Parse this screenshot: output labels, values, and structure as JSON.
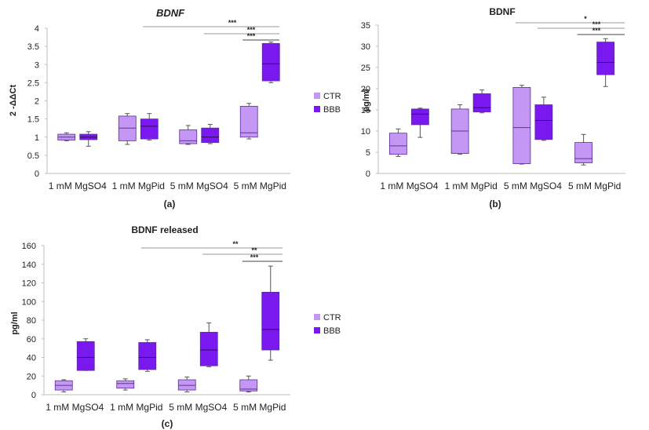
{
  "colors": {
    "ctr": "#c497f4",
    "bbb": "#7a18f0",
    "outline": "#5b2b9a",
    "axis": "#bdbdbd",
    "sig": "#9a9a9a"
  },
  "chart_data": [
    {
      "id": "a",
      "type": "boxplot",
      "title": "BDNF",
      "title_italic": true,
      "ylabel": "2 -ΔΔCt",
      "panel_label": "(a)",
      "categories": [
        "1 mM MgSO4",
        "1 mM MgPid",
        "5 mM MgSO4",
        "5 mM MgPid"
      ],
      "ylim": [
        0,
        4
      ],
      "yticks": [
        "0",
        "0.5",
        "1",
        "1.5",
        "2",
        "2.5",
        "3",
        "3.5",
        "4"
      ],
      "legend": [
        "CTR",
        "BBB"
      ],
      "series": [
        {
          "name": "CTR",
          "boxes": [
            {
              "min": 0.9,
              "q1": 0.92,
              "median": 1.0,
              "q3": 1.08,
              "max": 1.12
            },
            {
              "min": 0.8,
              "q1": 0.9,
              "median": 1.25,
              "q3": 1.58,
              "max": 1.65
            },
            {
              "min": 0.8,
              "q1": 0.82,
              "median": 0.9,
              "q3": 1.2,
              "max": 1.32
            },
            {
              "min": 0.95,
              "q1": 1.0,
              "median": 1.12,
              "q3": 1.85,
              "max": 1.93
            }
          ]
        },
        {
          "name": "BBB",
          "boxes": [
            {
              "min": 0.75,
              "q1": 0.93,
              "median": 1.0,
              "q3": 1.08,
              "max": 1.15
            },
            {
              "min": 0.92,
              "q1": 0.95,
              "median": 1.3,
              "q3": 1.5,
              "max": 1.65
            },
            {
              "min": 0.82,
              "q1": 0.85,
              "median": 1.0,
              "q3": 1.25,
              "max": 1.35
            },
            {
              "min": 2.5,
              "q1": 2.55,
              "median": 3.02,
              "q3": 3.58,
              "max": 3.62
            }
          ]
        }
      ],
      "significance": [
        {
          "label": "***",
          "from": [
            1,
            1
          ],
          "to": [
            3,
            1
          ]
        },
        {
          "label": "***",
          "from": [
            2,
            1
          ],
          "to": [
            3,
            1
          ]
        },
        {
          "label": "***",
          "from": [
            3,
            0
          ],
          "to": [
            3,
            1
          ]
        }
      ]
    },
    {
      "id": "b",
      "type": "boxplot",
      "title": "BDNF",
      "title_italic": false,
      "ylabel": "pg/ml",
      "panel_label": "(b)",
      "categories": [
        "1 mM MgSO4",
        "1 mM MgPid",
        "5 mM MgSO4",
        "5 mM MgPid"
      ],
      "ylim": [
        0,
        35
      ],
      "yticks": [
        "0",
        "5",
        "10",
        "15",
        "20",
        "25",
        "30",
        "35"
      ],
      "legend": [],
      "series": [
        {
          "name": "CTR",
          "boxes": [
            {
              "min": 4.0,
              "q1": 4.5,
              "median": 6.5,
              "q3": 9.5,
              "max": 10.5
            },
            {
              "min": 4.5,
              "q1": 4.7,
              "median": 10.0,
              "q3": 15.2,
              "max": 16.2
            },
            {
              "min": 2.2,
              "q1": 2.3,
              "median": 10.8,
              "q3": 20.3,
              "max": 20.8
            },
            {
              "min": 2.0,
              "q1": 2.5,
              "median": 3.5,
              "q3": 7.3,
              "max": 9.2
            }
          ]
        },
        {
          "name": "BBB",
          "boxes": [
            {
              "min": 8.5,
              "q1": 11.5,
              "median": 14.0,
              "q3": 15.2,
              "max": 15.4
            },
            {
              "min": 14.3,
              "q1": 14.5,
              "median": 15.5,
              "q3": 18.8,
              "max": 19.7
            },
            {
              "min": 7.8,
              "q1": 8.0,
              "median": 12.5,
              "q3": 16.2,
              "max": 18.0
            },
            {
              "min": 20.5,
              "q1": 23.3,
              "median": 26.2,
              "q3": 31.0,
              "max": 31.8
            }
          ]
        }
      ],
      "significance": [
        {
          "label": "*",
          "from": [
            2,
            0
          ],
          "to": [
            3,
            1
          ]
        },
        {
          "label": "***",
          "from": [
            2,
            1
          ],
          "to": [
            3,
            1
          ]
        },
        {
          "label": "***",
          "from": [
            3,
            0
          ],
          "to": [
            3,
            1
          ]
        }
      ]
    },
    {
      "id": "c",
      "type": "boxplot",
      "title": "BDNF released",
      "title_italic": false,
      "ylabel": "pg/ml",
      "panel_label": "(c)",
      "categories": [
        "1 mM MgSO4",
        "1 mM MgPid",
        "5 mM MgSO4",
        "5 mM MgPid"
      ],
      "ylim": [
        0,
        160
      ],
      "yticks": [
        "0",
        "20",
        "40",
        "60",
        "80",
        "100",
        "120",
        "140",
        "160"
      ],
      "legend": [
        "CTR",
        "BBB"
      ],
      "series": [
        {
          "name": "CTR",
          "boxes": [
            {
              "min": 3,
              "q1": 5,
              "median": 10,
              "q3": 15,
              "max": 16
            },
            {
              "min": 5,
              "q1": 7,
              "median": 12,
              "q3": 15,
              "max": 17
            },
            {
              "min": 3,
              "q1": 5,
              "median": 10,
              "q3": 16,
              "max": 19
            },
            {
              "min": 3,
              "q1": 4,
              "median": 6,
              "q3": 16,
              "max": 20
            }
          ]
        },
        {
          "name": "BBB",
          "boxes": [
            {
              "min": 26,
              "q1": 26,
              "median": 40,
              "q3": 57,
              "max": 60
            },
            {
              "min": 25,
              "q1": 27,
              "median": 40,
              "q3": 56,
              "max": 59
            },
            {
              "min": 30,
              "q1": 31,
              "median": 48,
              "q3": 67,
              "max": 77
            },
            {
              "min": 37,
              "q1": 48,
              "median": 70,
              "q3": 110,
              "max": 138
            }
          ]
        }
      ],
      "significance": [
        {
          "label": "**",
          "from": [
            1,
            1
          ],
          "to": [
            3,
            1
          ]
        },
        {
          "label": "**",
          "from": [
            2,
            1
          ],
          "to": [
            3,
            1
          ]
        },
        {
          "label": "***",
          "from": [
            3,
            0
          ],
          "to": [
            3,
            1
          ]
        }
      ]
    }
  ]
}
